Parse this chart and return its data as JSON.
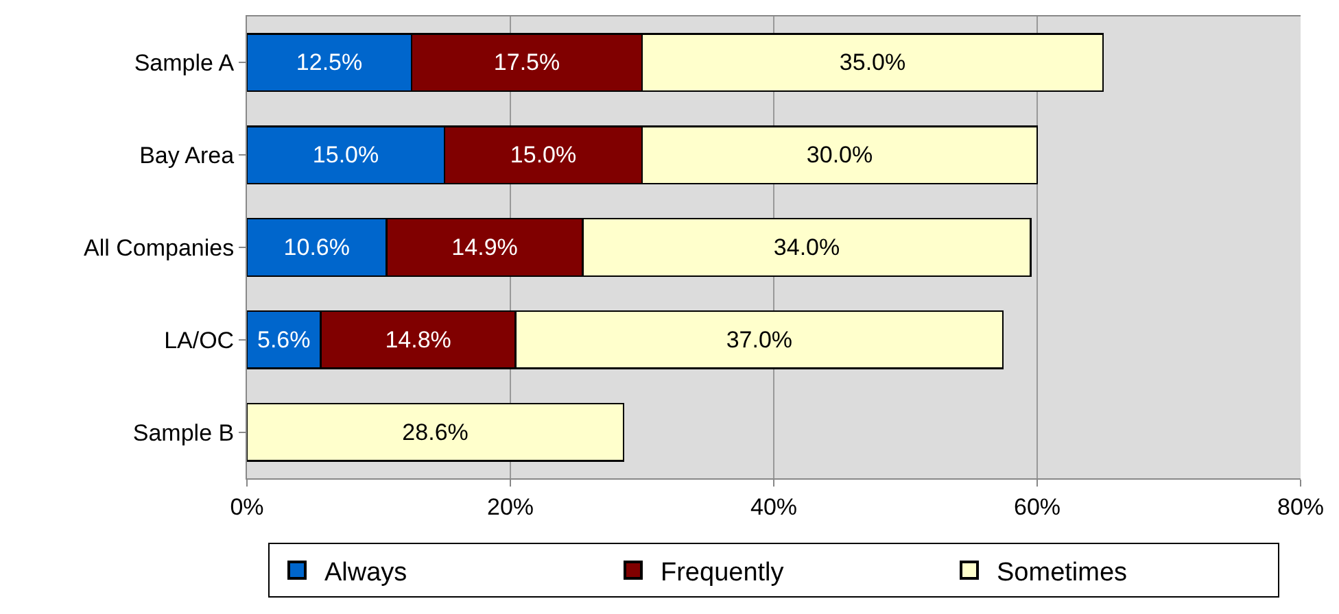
{
  "chart_data": {
    "type": "bar",
    "orientation": "horizontal",
    "stacked": true,
    "categories": [
      "Sample A",
      "Bay Area",
      "All Companies",
      "LA/OC",
      "Sample B"
    ],
    "series": [
      {
        "name": "Always",
        "color": "#0066cc",
        "values": [
          12.5,
          15.0,
          10.6,
          5.6,
          null
        ],
        "value_labels": [
          "12.5%",
          "15.0%",
          "10.6%",
          "5.6%",
          null
        ]
      },
      {
        "name": "Frequently",
        "color": "#800000",
        "values": [
          17.5,
          15.0,
          14.9,
          14.8,
          null
        ],
        "value_labels": [
          "17.5%",
          "15.0%",
          "14.9%",
          "14.8%",
          null
        ]
      },
      {
        "name": "Sometimes",
        "color": "#ffffcc",
        "values": [
          35.0,
          30.0,
          34.0,
          37.0,
          28.6
        ],
        "value_labels": [
          "35.0%",
          "30.0%",
          "34.0%",
          "37.0%",
          "28.6%"
        ]
      }
    ],
    "xlim": [
      0,
      80
    ],
    "xticks": [
      {
        "value": 0,
        "label": "0%"
      },
      {
        "value": 20,
        "label": "20%"
      },
      {
        "value": 40,
        "label": "40%"
      },
      {
        "value": 60,
        "label": "60%"
      },
      {
        "value": 80,
        "label": "80%"
      }
    ],
    "grid": "x",
    "legend": "bottom"
  }
}
